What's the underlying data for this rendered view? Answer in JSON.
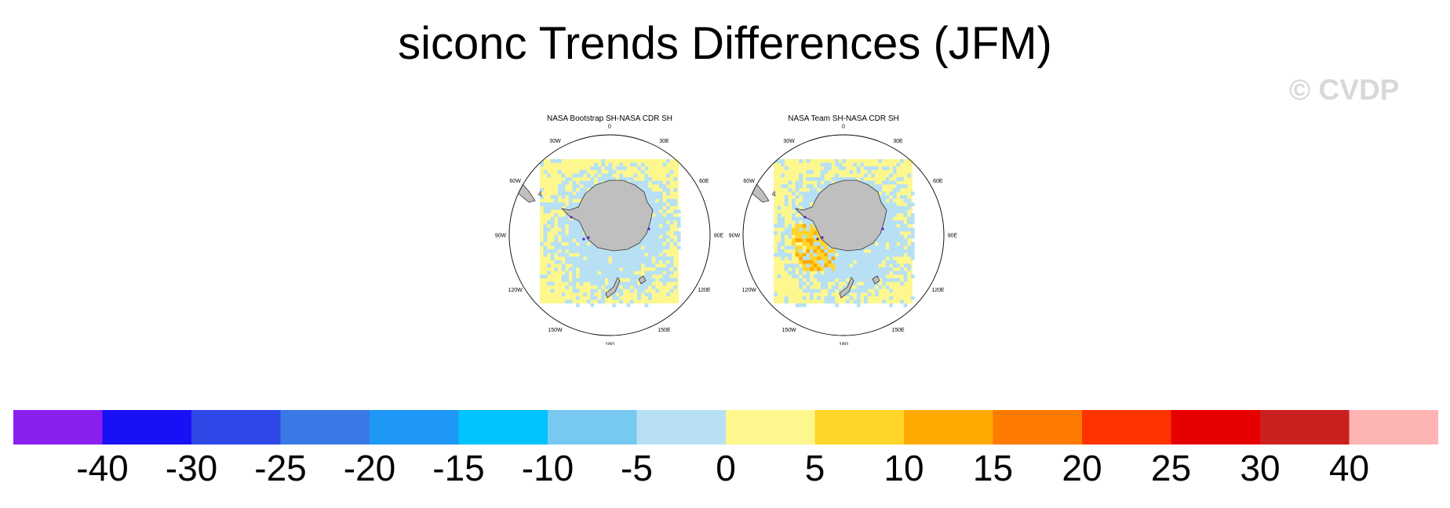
{
  "title": "siconc Trends Differences (JFM)",
  "watermark": "© CVDP",
  "chart_data": {
    "type": "heatmap",
    "panels": [
      {
        "title": "NASA Bootstrap SH-NASA CDR SH",
        "lon_labels": [
          "0",
          "30E",
          "60E",
          "90E",
          "120E",
          "150E",
          "180",
          "150W",
          "120W",
          "90W",
          "60W",
          "30W"
        ],
        "dominant_bins": [
          "-5",
          "0"
        ]
      },
      {
        "title": "NASA Team SH-NASA CDR SH",
        "lon_labels": [
          "0",
          "30E",
          "60E",
          "90E",
          "120E",
          "150E",
          "180",
          "150W",
          "120W",
          "90W",
          "60W",
          "30W"
        ],
        "dominant_bins": [
          "-5",
          "0",
          "5",
          "10"
        ]
      }
    ],
    "colorbar": {
      "levels": [
        "-40",
        "-30",
        "-25",
        "-20",
        "-15",
        "-10",
        "-5",
        "0",
        "5",
        "10",
        "15",
        "20",
        "25",
        "30",
        "40"
      ],
      "colors": [
        "#8a1ff0",
        "#1a10f5",
        "#2e48e8",
        "#3a78e6",
        "#1e98f5",
        "#00c3fb",
        "#78c9f2",
        "#b7e0f5",
        "#fdf78e",
        "#ffd52a",
        "#ffa900",
        "#ff7a00",
        "#ff3300",
        "#e60000",
        "#cc1f1f",
        "#ffb4b4"
      ]
    },
    "colors": {
      "land": "#bfbfbf",
      "ocean_neutral": "#fdf78e",
      "ocean_slight_neg": "#b7e0f5"
    }
  }
}
